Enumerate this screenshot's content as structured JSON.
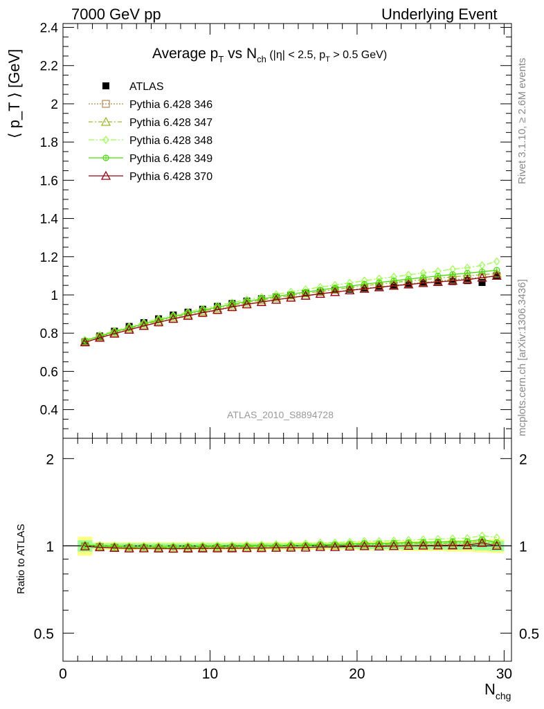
{
  "header": {
    "left": "7000 GeV pp",
    "right": "Underlying Event"
  },
  "side_labels": {
    "rivet": "Rivet 3.1.10, ≥ 2.6M events",
    "mcplots": "mcplots.cern.ch [arXiv:1306.3436]"
  },
  "watermark": "ATLAS_2010_S8894728",
  "colors": {
    "atlas": "#000000",
    "p346": "#b8864b",
    "p347": "#99bb22",
    "p348": "#99ff44",
    "p349": "#44dd00",
    "p370": "#990011",
    "band_outer": "#ffff80",
    "band_inner": "#99ff99"
  },
  "chart_data": {
    "type": "line",
    "title": "Average p_T vs N_ch (|η| < 2.5, p_T > 0.5 GeV)",
    "title_parts": {
      "main": "Average p",
      "sub_t": "T",
      "vs": " vs N",
      "sub_ch": "ch",
      "cond1": " (|η| < 2.5, p",
      "sub_t2": "T",
      "cond2": " > 0.5 GeV)"
    },
    "xlabel": "N_chg",
    "xlabel_parts": {
      "main": "N",
      "sub": "chg"
    },
    "ylabel": "⟨ p_T ⟩ [GeV]",
    "ratio_ylabel": "Ratio to ATLAS",
    "xlim": [
      0,
      30.5
    ],
    "ylim": [
      0.25,
      2.42
    ],
    "ratio_ylim": [
      0.4,
      2.35
    ],
    "x_ticks": [
      0,
      10,
      20,
      30
    ],
    "y_ticks": [
      0.4,
      0.6,
      0.8,
      1,
      1.2,
      1.4,
      1.6,
      1.8,
      2,
      2.2,
      2.4
    ],
    "y_tick_labels": [
      "0.4",
      "0.6",
      "0.8",
      "1",
      "1.2",
      "1.4",
      "1.6",
      "1.8",
      "2",
      "2.2",
      "2.4"
    ],
    "ratio_ticks": [
      0.5,
      1,
      2
    ],
    "ratio_tick_labels": [
      "0.5",
      "1",
      "2"
    ],
    "legend_position": "top-left",
    "x": [
      1.5,
      2.5,
      3.5,
      4.5,
      5.5,
      6.5,
      7.5,
      8.5,
      9.5,
      10.5,
      11.5,
      12.5,
      13.5,
      14.5,
      15.5,
      16.5,
      17.5,
      18.5,
      19.5,
      20.5,
      21.5,
      22.5,
      23.5,
      24.5,
      25.5,
      26.5,
      27.5,
      28.5,
      29.5
    ],
    "series": [
      {
        "name": "ATLAS",
        "values": [
          0.755,
          0.785,
          0.81,
          0.835,
          0.855,
          0.875,
          0.895,
          0.91,
          0.925,
          0.94,
          0.955,
          0.968,
          0.98,
          0.99,
          1.0,
          1.01,
          1.015,
          1.025,
          1.03,
          1.035,
          1.045,
          1.05,
          1.055,
          1.06,
          1.065,
          1.07,
          1.075,
          1.065,
          1.1
        ]
      },
      {
        "name": "Pythia 6.428 346",
        "values": [
          0.752,
          0.778,
          0.798,
          0.818,
          0.838,
          0.856,
          0.874,
          0.89,
          0.905,
          0.92,
          0.935,
          0.95,
          0.962,
          0.974,
          0.985,
          0.995,
          1.005,
          1.015,
          1.025,
          1.035,
          1.042,
          1.05,
          1.058,
          1.065,
          1.072,
          1.08,
          1.085,
          1.092,
          1.1
        ]
      },
      {
        "name": "Pythia 6.428 347",
        "values": [
          0.758,
          0.783,
          0.804,
          0.825,
          0.845,
          0.864,
          0.882,
          0.898,
          0.914,
          0.93,
          0.945,
          0.96,
          0.973,
          0.985,
          0.997,
          1.008,
          1.018,
          1.028,
          1.038,
          1.048,
          1.056,
          1.065,
          1.073,
          1.08,
          1.087,
          1.095,
          1.1,
          1.106,
          1.112
        ]
      },
      {
        "name": "Pythia 6.428 348",
        "values": [
          0.765,
          0.79,
          0.812,
          0.834,
          0.855,
          0.875,
          0.894,
          0.911,
          0.928,
          0.944,
          0.96,
          0.975,
          0.989,
          1.003,
          1.016,
          1.029,
          1.041,
          1.052,
          1.063,
          1.075,
          1.085,
          1.095,
          1.105,
          1.115,
          1.124,
          1.135,
          1.142,
          1.155,
          1.175
        ]
      },
      {
        "name": "Pythia 6.428 349",
        "values": [
          0.76,
          0.785,
          0.807,
          0.828,
          0.849,
          0.868,
          0.887,
          0.904,
          0.92,
          0.936,
          0.951,
          0.966,
          0.979,
          0.992,
          1.004,
          1.015,
          1.026,
          1.036,
          1.046,
          1.056,
          1.065,
          1.074,
          1.083,
          1.091,
          1.099,
          1.107,
          1.114,
          1.121,
          1.13
        ]
      },
      {
        "name": "Pythia 6.428 370",
        "values": [
          0.752,
          0.776,
          0.797,
          0.818,
          0.838,
          0.857,
          0.875,
          0.891,
          0.907,
          0.922,
          0.937,
          0.951,
          0.963,
          0.975,
          0.986,
          0.996,
          1.006,
          1.015,
          1.024,
          1.032,
          1.04,
          1.048,
          1.055,
          1.062,
          1.068,
          1.074,
          1.08,
          1.09,
          1.1
        ]
      }
    ],
    "ratio_band": {
      "outer": [
        0.075,
        0.03,
        0.03,
        0.03,
        0.03,
        0.03,
        0.03,
        0.03,
        0.03,
        0.03,
        0.03,
        0.03,
        0.03,
        0.03,
        0.03,
        0.03,
        0.03,
        0.03,
        0.03,
        0.035,
        0.035,
        0.035,
        0.04,
        0.04,
        0.04,
        0.045,
        0.045,
        0.05,
        0.055
      ],
      "inner": [
        0.045,
        0.02,
        0.02,
        0.02,
        0.02,
        0.02,
        0.02,
        0.02,
        0.02,
        0.02,
        0.02,
        0.02,
        0.02,
        0.02,
        0.02,
        0.02,
        0.02,
        0.02,
        0.02,
        0.025,
        0.025,
        0.025,
        0.028,
        0.028,
        0.028,
        0.03,
        0.03,
        0.035,
        0.04
      ]
    }
  }
}
